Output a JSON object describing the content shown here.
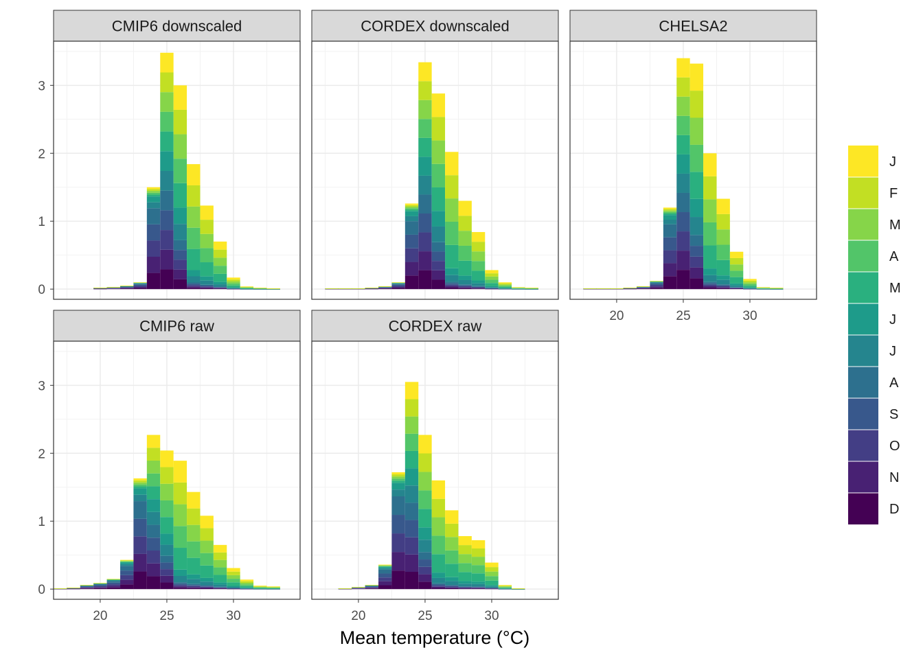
{
  "chart_data": {
    "type": "bar",
    "subtype": "stacked-histogram-facets",
    "xlabel": "Mean temperature (°C)",
    "ylabel": "",
    "xlim": [
      16.5,
      35
    ],
    "ylim": [
      -0.15,
      3.65
    ],
    "x_ticks": [
      20,
      25,
      30
    ],
    "y_ticks": [
      0,
      1,
      2,
      3
    ],
    "bin_width": 1,
    "legend": {
      "position": "right",
      "labels": [
        "J",
        "F",
        "M",
        "A",
        "M",
        "J",
        "J",
        "A",
        "S",
        "O",
        "N",
        "D"
      ],
      "colors": [
        "#FDE725",
        "#C2DF23",
        "#86D549",
        "#52C569",
        "#2AB07F",
        "#1E9B8A",
        "#25858E",
        "#2D708E",
        "#38588C",
        "#433E85",
        "#482173",
        "#440154"
      ]
    },
    "panels": [
      {
        "title": "CMIP6 downscaled",
        "x": [
          18,
          19,
          20,
          21,
          22,
          23,
          24,
          25,
          26,
          27,
          28,
          29,
          30,
          31,
          32,
          33
        ],
        "totals": [
          0.0,
          0.0,
          0.02,
          0.03,
          0.05,
          0.1,
          1.5,
          3.48,
          3.0,
          1.84,
          1.23,
          0.7,
          0.17,
          0.04,
          0.02,
          0.01
        ]
      },
      {
        "title": "CORDEX downscaled",
        "x": [
          18,
          19,
          20,
          21,
          22,
          23,
          24,
          25,
          26,
          27,
          28,
          29,
          30,
          31,
          32,
          33
        ],
        "totals": [
          0.01,
          0.01,
          0.01,
          0.02,
          0.04,
          0.1,
          1.26,
          3.34,
          2.88,
          2.02,
          1.3,
          0.84,
          0.28,
          0.1,
          0.03,
          0.02
        ]
      },
      {
        "title": "CHELSA2",
        "x": [
          18,
          19,
          20,
          21,
          22,
          23,
          24,
          25,
          26,
          27,
          28,
          29,
          30,
          31,
          32
        ],
        "totals": [
          0.01,
          0.01,
          0.01,
          0.02,
          0.04,
          0.12,
          1.2,
          3.4,
          3.32,
          2.0,
          1.33,
          0.55,
          0.15,
          0.03,
          0.02
        ]
      },
      {
        "title": "CMIP6 raw",
        "x": [
          17,
          18,
          19,
          20,
          21,
          22,
          23,
          24,
          25,
          26,
          27,
          28,
          29,
          30,
          31,
          32,
          33
        ],
        "totals": [
          0.01,
          0.02,
          0.06,
          0.09,
          0.15,
          0.43,
          1.63,
          2.27,
          2.04,
          1.89,
          1.43,
          1.08,
          0.65,
          0.31,
          0.14,
          0.05,
          0.04
        ]
      },
      {
        "title": "CORDEX raw",
        "x": [
          19,
          20,
          21,
          22,
          23,
          24,
          25,
          26,
          27,
          28,
          29,
          30,
          31,
          32
        ],
        "totals": [
          0.01,
          0.03,
          0.06,
          0.36,
          1.72,
          3.05,
          2.27,
          1.6,
          1.16,
          0.78,
          0.72,
          0.39,
          0.06,
          0.01
        ]
      }
    ]
  }
}
